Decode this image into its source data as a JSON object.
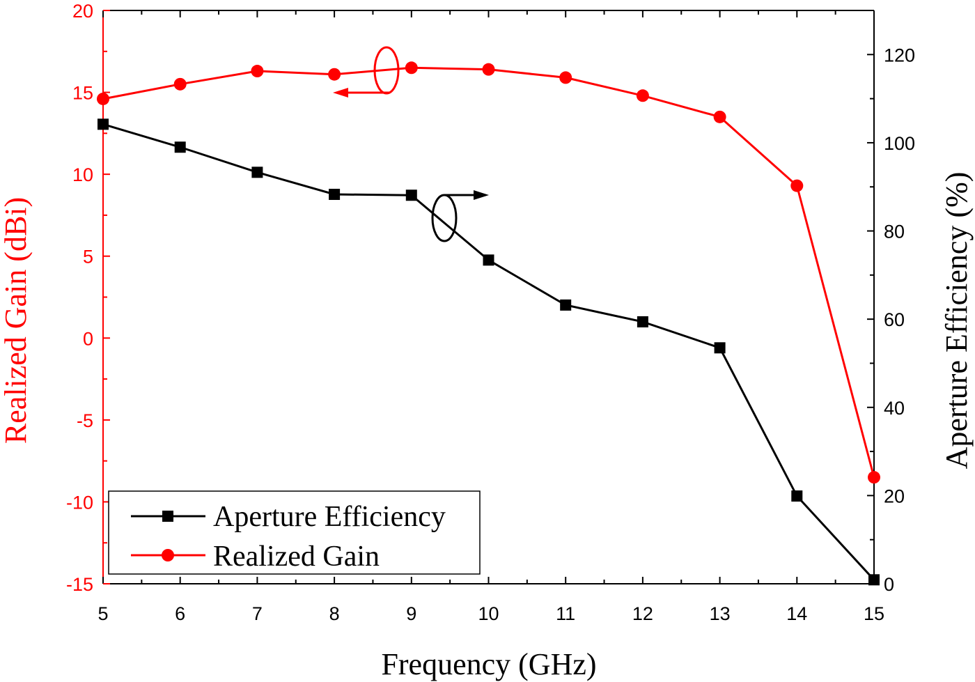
{
  "chart_data": {
    "type": "line",
    "xlabel": "Frequency (GHz)",
    "ylabel_left": "Realized Gain (dBi)",
    "ylabel_right": "Aperture Efficiency (%)",
    "xlim": [
      5,
      15
    ],
    "ylim_left": [
      -15,
      20
    ],
    "ylim_right": [
      0,
      130
    ],
    "x_ticks": [
      5,
      6,
      7,
      8,
      9,
      10,
      11,
      12,
      13,
      14,
      15
    ],
    "y_left_ticks": [
      -15,
      -10,
      -5,
      0,
      5,
      10,
      15,
      20
    ],
    "y_right_ticks": [
      0,
      20,
      40,
      60,
      80,
      100,
      120
    ],
    "grid": false,
    "legend_placement": "bottom-left",
    "x": [
      5,
      6,
      7,
      8,
      9,
      10,
      11,
      12,
      13,
      14,
      15
    ],
    "series": [
      {
        "name": "Aperture Efficiency",
        "axis": "right",
        "color": "#000000",
        "marker": "square",
        "values": [
          104.2,
          99.0,
          93.3,
          88.3,
          88.1,
          73.4,
          63.2,
          59.4,
          53.5,
          19.9,
          0.9
        ]
      },
      {
        "name": "Realized Gain",
        "axis": "left",
        "color": "#ff0000",
        "marker": "circle",
        "values": [
          14.6,
          15.5,
          16.3,
          16.1,
          16.5,
          16.4,
          15.9,
          14.8,
          13.5,
          9.3,
          -8.5
        ]
      }
    ],
    "left_axis_color": "#ff0000",
    "right_axis_color": "#000000"
  }
}
